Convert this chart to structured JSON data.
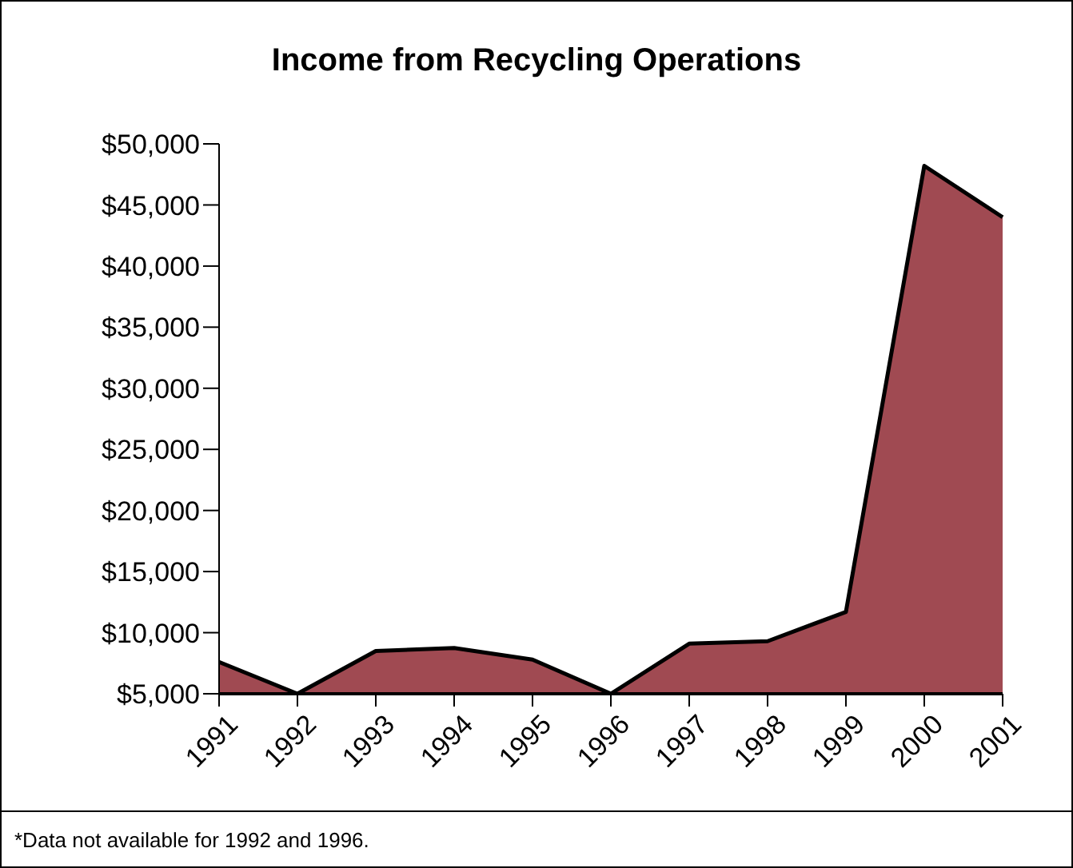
{
  "chart_data": {
    "type": "area",
    "title": "Income from Recycling Operations",
    "categories": [
      "1991",
      "1992",
      "1993",
      "1994",
      "1995",
      "1996",
      "1997",
      "1998",
      "1999",
      "2000",
      "2001"
    ],
    "values": [
      7600,
      null,
      8500,
      8750,
      7800,
      null,
      9100,
      9300,
      11700,
      48200,
      44000
    ],
    "color": "#a04a52",
    "ylim": [
      5000,
      50000
    ],
    "yticks": [
      {
        "value": 5000,
        "label": "$5,000"
      },
      {
        "value": 10000,
        "label": "$10,000"
      },
      {
        "value": 15000,
        "label": "$15,000"
      },
      {
        "value": 20000,
        "label": "$20,000"
      },
      {
        "value": 25000,
        "label": "$25,000"
      },
      {
        "value": 30000,
        "label": "$30,000"
      },
      {
        "value": 35000,
        "label": "$35,000"
      },
      {
        "value": 40000,
        "label": "$40,000"
      },
      {
        "value": 45000,
        "label": "$45,000"
      },
      {
        "value": 50000,
        "label": "$50,000"
      }
    ],
    "grid": false,
    "annotations": [
      "*Data not available for 1992 and 1996."
    ]
  }
}
